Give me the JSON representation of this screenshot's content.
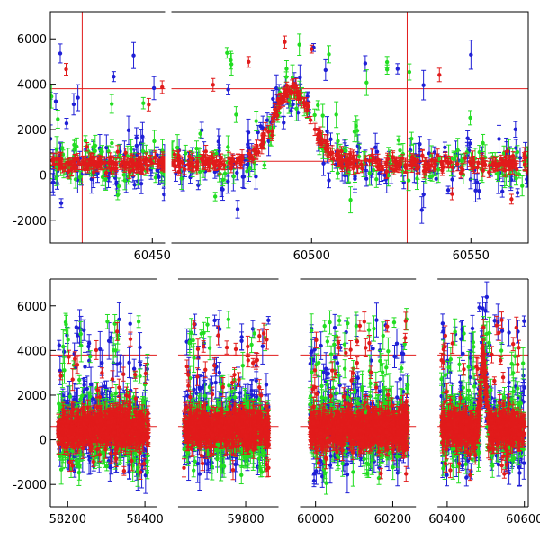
{
  "chart_data": [
    {
      "type": "scatter",
      "title": "",
      "xlabel": "",
      "ylabel": "",
      "xlim": [
        60418,
        60568
      ],
      "ylim": [
        -3000,
        7200
      ],
      "grid": false,
      "legend": "none",
      "x_ticks": [
        60450,
        60500,
        60550
      ],
      "x_tick_labels": [
        "60450",
        "60500",
        "60550"
      ],
      "y_ticks": [
        -2000,
        0,
        2000,
        4000,
        6000
      ],
      "y_tick_labels": [
        "-2000",
        "0",
        "2000",
        "4000",
        "6000"
      ],
      "gaps": [
        [
          60454,
          60456
        ]
      ],
      "hlines": [
        {
          "y": 3800,
          "color": "#e11b1b"
        },
        {
          "y": 600,
          "color": "#e11b1b"
        }
      ],
      "vlines": [
        {
          "x": 60428,
          "color": "#e11b1b"
        },
        {
          "x": 60530,
          "color": "#e11b1b"
        }
      ],
      "series": [
        {
          "color": "#1f1fd6",
          "noise": 1000,
          "outlier_rate": 0.18,
          "density": 1.0,
          "seed": 11
        },
        {
          "color": "#22dd22",
          "noise": 850,
          "outlier_rate": 0.1,
          "density": 1.0,
          "seed": 23
        },
        {
          "color": "#e11b1b",
          "noise": 320,
          "outlier_rate": 0.03,
          "density": 2.2,
          "seed": 37
        }
      ],
      "flare": {
        "center": 60494,
        "width": 6,
        "amplitude": 3300,
        "baseline": 500
      }
    },
    {
      "type": "scatter",
      "title": "",
      "xlabel": "",
      "ylabel": "",
      "ylim": [
        -3000,
        7200
      ],
      "grid": false,
      "legend": "none",
      "y_ticks": [
        -2000,
        0,
        2000,
        4000,
        6000
      ],
      "y_tick_labels": [
        "-2000",
        "0",
        "2000",
        "4000",
        "6000"
      ],
      "segments": [
        {
          "xlim": [
            58155,
            58430
          ],
          "x_ticks": [
            58200,
            58400
          ],
          "x_tick_labels": [
            "58200",
            "58400"
          ],
          "data_range": [
            58175,
            58410
          ]
        },
        {
          "xlim": [
            59625,
            59885
          ],
          "x_ticks": [
            59800
          ],
          "x_tick_labels": [
            "59800"
          ],
          "data_range": [
            59640,
            59860
          ]
        },
        {
          "xlim": [
            59960,
            60260
          ],
          "x_ticks": [
            60000,
            60200
          ],
          "x_tick_labels": [
            "60000",
            "60200"
          ],
          "data_range": [
            59985,
            60240
          ]
        },
        {
          "xlim": [
            60375,
            60610
          ],
          "x_ticks": [
            60400,
            60600
          ],
          "x_tick_labels": [
            "60400",
            "60600"
          ],
          "data_range": [
            60385,
            60600
          ]
        }
      ],
      "hlines": [
        {
          "y": 3800,
          "color": "#e11b1b"
        },
        {
          "y": 600,
          "color": "#e11b1b"
        }
      ],
      "series": [
        {
          "color": "#1f1fd6",
          "noise": 1400,
          "outlier_rate": 0.22,
          "density": 1.0,
          "seed": 51
        },
        {
          "color": "#22dd22",
          "noise": 1200,
          "outlier_rate": 0.15,
          "density": 1.0,
          "seed": 63
        },
        {
          "color": "#e11b1b",
          "noise": 700,
          "outlier_rate": 0.08,
          "density": 2.0,
          "seed": 77
        }
      ],
      "flare": {
        "center": 60494,
        "width": 6,
        "amplitude": 3300,
        "baseline": 500
      }
    }
  ]
}
